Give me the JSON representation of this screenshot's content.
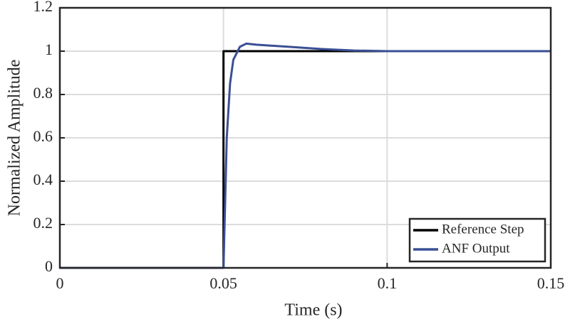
{
  "chart_data": {
    "type": "line",
    "x_label": "Time (s)",
    "y_label": "Normalized Amplitude",
    "xlim": [
      0,
      0.15
    ],
    "xticks": [
      0,
      0.05,
      0.1,
      0.15
    ],
    "ylim": [
      0,
      1.2
    ],
    "yticks": [
      0,
      0.2,
      0.4,
      0.6,
      0.8,
      1,
      1.2
    ],
    "grid": true,
    "legend": "lower right",
    "series": [
      {
        "name": "Reference Step",
        "color": "#000000",
        "x": [
          0,
          0.05,
          0.05,
          0.15
        ],
        "values": [
          0,
          0,
          1,
          1
        ]
      },
      {
        "name": "ANF Output",
        "color": "#3a4f94",
        "x": [
          0,
          0.05,
          0.0505,
          0.051,
          0.052,
          0.053,
          0.055,
          0.057,
          0.06,
          0.07,
          0.08,
          0.09,
          0.1,
          0.15
        ],
        "values": [
          0,
          0,
          0.3,
          0.6,
          0.85,
          0.96,
          1.02,
          1.035,
          1.03,
          1.02,
          1.01,
          1.003,
          1.0,
          1.0
        ]
      }
    ]
  }
}
